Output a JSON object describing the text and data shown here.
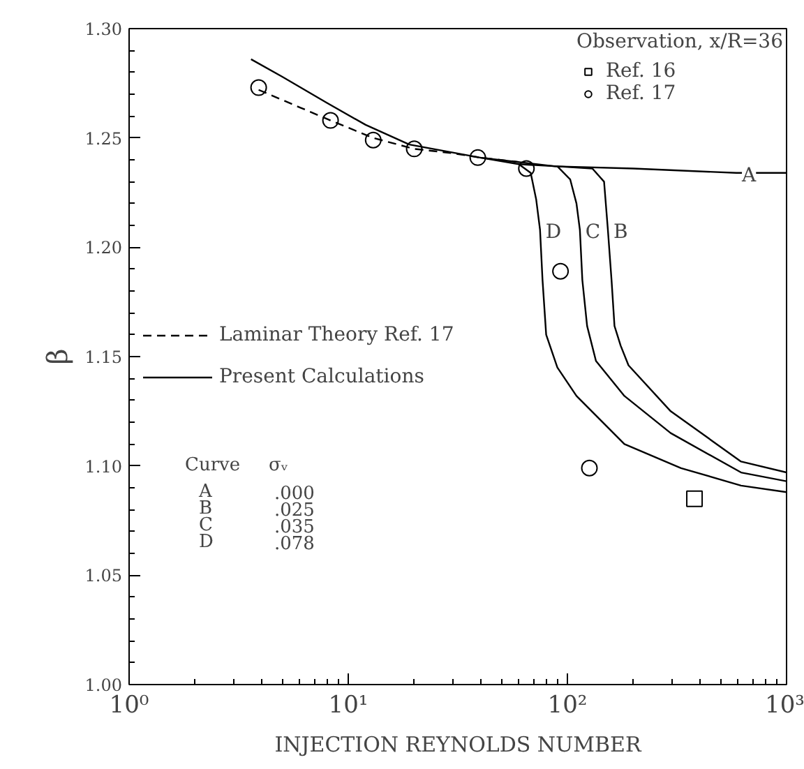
{
  "chart_data": {
    "type": "line",
    "xlabel": "INJECTION REYNOLDS NUMBER",
    "ylabel": "β",
    "legend_title": "Observation, x/R=36",
    "log": "x",
    "xlim": [
      1,
      1000
    ],
    "ylim": [
      1.0,
      1.3
    ],
    "xticks": [
      {
        "value": 1,
        "label": "10⁰"
      },
      {
        "value": 10,
        "label": "10¹"
      },
      {
        "value": 100,
        "label": "10²"
      },
      {
        "value": 1000,
        "label": "10³"
      }
    ],
    "yticks": [
      {
        "value": 1.0,
        "label": "1.00"
      },
      {
        "value": 1.05,
        "label": "1.05"
      },
      {
        "value": 1.1,
        "label": "1.10"
      },
      {
        "value": 1.15,
        "label": "1.15"
      },
      {
        "value": 1.2,
        "label": "1.20"
      },
      {
        "value": 1.25,
        "label": "1.25"
      },
      {
        "value": 1.3,
        "label": "1.30"
      }
    ],
    "grid": false,
    "legend": "left",
    "series": [
      {
        "name": "Ref. 16",
        "type": "scatter",
        "marker": "square",
        "color": "#000000",
        "x": [
          380
        ],
        "values": [
          1.085
        ]
      },
      {
        "name": "Ref. 17",
        "type": "scatter",
        "marker": "circle",
        "color": "#000000",
        "x": [
          3.9,
          8.3,
          13,
          20,
          39,
          65,
          93,
          126
        ],
        "values": [
          1.273,
          1.258,
          1.249,
          1.245,
          1.241,
          1.236,
          1.189,
          1.099
        ]
      },
      {
        "name": "Laminar Theory Ref. 17",
        "line_style": "dashed",
        "color": "#000000",
        "x": [
          3.9,
          6,
          8.3,
          13,
          20,
          30,
          40,
          60
        ],
        "values": [
          1.272,
          1.264,
          1.258,
          1.25,
          1.245,
          1.243,
          1.241,
          1.239
        ]
      },
      {
        "name": "Present Calculations",
        "line_style": "solid",
        "color": "#000000",
        "x": [
          3.6,
          5,
          8,
          12,
          19,
          40,
          88,
          200,
          590,
          1000
        ],
        "values": [
          1.286,
          1.278,
          1.266,
          1.256,
          1.247,
          1.241,
          1.237,
          1.236,
          1.234,
          1.234
        ]
      },
      {
        "line_style": "solid",
        "color": "#000000",
        "x": [
          90,
          130,
          147,
          153,
          159,
          164,
          175,
          190,
          296,
          620,
          1000
        ],
        "values": [
          1.237,
          1.236,
          1.23,
          1.208,
          1.185,
          1.164,
          1.155,
          1.146,
          1.125,
          1.102,
          1.097
        ]
      },
      {
        "line_style": "solid",
        "color": "#000000",
        "x": [
          60,
          90,
          103,
          110,
          114,
          117,
          123,
          135,
          182,
          296,
          620,
          1000
        ],
        "values": [
          1.238,
          1.237,
          1.231,
          1.22,
          1.208,
          1.185,
          1.164,
          1.148,
          1.132,
          1.115,
          1.097,
          1.093
        ]
      },
      {
        "line_style": "solid",
        "color": "#000000",
        "x": [
          40,
          60,
          68,
          72,
          75,
          77,
          80,
          90,
          110,
          182,
          330,
          620,
          1000
        ],
        "values": [
          1.241,
          1.238,
          1.234,
          1.222,
          1.208,
          1.185,
          1.16,
          1.145,
          1.132,
          1.11,
          1.099,
          1.091,
          1.088
        ]
      }
    ],
    "annotations": [
      {
        "text": "A",
        "x": 590,
        "y": 1.234
      },
      {
        "text": "B",
        "x": 153,
        "y": 1.208
      },
      {
        "text": "C",
        "x": 114,
        "y": 1.208
      },
      {
        "text": "D",
        "x": 75,
        "y": 1.208
      },
      "Curve     σᵥ",
      "  A       .000",
      "  B       .025",
      "  C       .035",
      "  D       .078"
    ]
  }
}
